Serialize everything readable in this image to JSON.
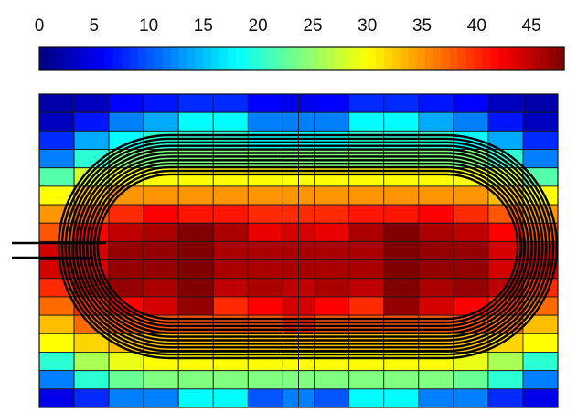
{
  "chart_data": {
    "type": "heatmap",
    "title": "",
    "xlabel": "",
    "ylabel": "",
    "grid": true,
    "colorbar": {
      "placement": "top",
      "range": [
        0,
        48
      ],
      "ticks": [
        0,
        5,
        10,
        15,
        20,
        25,
        30,
        35,
        40,
        45
      ],
      "tick_labels": [
        "0",
        "5",
        "10",
        "15",
        "20",
        "25",
        "30",
        "35",
        "40",
        "45"
      ]
    },
    "colors": {
      "low": "#00008f",
      "mid": "#ffff00",
      "high": "#800000",
      "coil": "#000000",
      "grid": "#1a1a1a"
    },
    "rows": 17,
    "col_widths": [
      1,
      1,
      1,
      1,
      1,
      1,
      1,
      0.45,
      0.45,
      1,
      1,
      1,
      1,
      1,
      1,
      1
    ],
    "values": [
      [
        2,
        3,
        6,
        7,
        8,
        8,
        6,
        5,
        5,
        6,
        8,
        8,
        7,
        6,
        3,
        2
      ],
      [
        3,
        7,
        12,
        14,
        18,
        18,
        12,
        12,
        12,
        12,
        18,
        18,
        14,
        12,
        7,
        3
      ],
      [
        8,
        14,
        18,
        20,
        20,
        20,
        18,
        18,
        18,
        18,
        20,
        20,
        20,
        18,
        14,
        8
      ],
      [
        12,
        20,
        24,
        24,
        24,
        24,
        24,
        24,
        24,
        24,
        24,
        24,
        24,
        24,
        20,
        12
      ],
      [
        22,
        28,
        30,
        30,
        30,
        30,
        30,
        30,
        30,
        30,
        30,
        30,
        30,
        30,
        28,
        22
      ],
      [
        30,
        33,
        35,
        35,
        35,
        35,
        35,
        35,
        35,
        35,
        35,
        35,
        35,
        35,
        33,
        30
      ],
      [
        35,
        38,
        40,
        42,
        41,
        41,
        40,
        40,
        40,
        40,
        41,
        41,
        42,
        40,
        38,
        35
      ],
      [
        38,
        42,
        45,
        46,
        48,
        46,
        43,
        44,
        44,
        43,
        46,
        48,
        46,
        45,
        42,
        38
      ],
      [
        44,
        44,
        47,
        47,
        48,
        46,
        46,
        46,
        46,
        46,
        46,
        48,
        47,
        47,
        44,
        44
      ],
      [
        44,
        44,
        47,
        47,
        48,
        46,
        46,
        46,
        46,
        46,
        46,
        48,
        47,
        47,
        44,
        44
      ],
      [
        40,
        45,
        47,
        46,
        48,
        45,
        46,
        45,
        45,
        46,
        45,
        48,
        46,
        47,
        45,
        40
      ],
      [
        37,
        40,
        42,
        44,
        47,
        40,
        42,
        44,
        44,
        42,
        40,
        47,
        44,
        42,
        40,
        37
      ],
      [
        33,
        37,
        38,
        38,
        38,
        38,
        38,
        40,
        40,
        38,
        38,
        38,
        38,
        38,
        37,
        33
      ],
      [
        30,
        32,
        33,
        33,
        33,
        33,
        33,
        33,
        33,
        33,
        33,
        33,
        33,
        33,
        32,
        30
      ],
      [
        20,
        26,
        29,
        30,
        30,
        30,
        30,
        30,
        30,
        30,
        30,
        30,
        30,
        29,
        26,
        20
      ],
      [
        12,
        20,
        23,
        24,
        24,
        24,
        24,
        24,
        24,
        24,
        24,
        24,
        24,
        23,
        20,
        12
      ],
      [
        5,
        8,
        12,
        12,
        18,
        18,
        10,
        12,
        12,
        10,
        18,
        18,
        12,
        12,
        8,
        5
      ]
    ],
    "coil": {
      "turns": 6
    }
  }
}
